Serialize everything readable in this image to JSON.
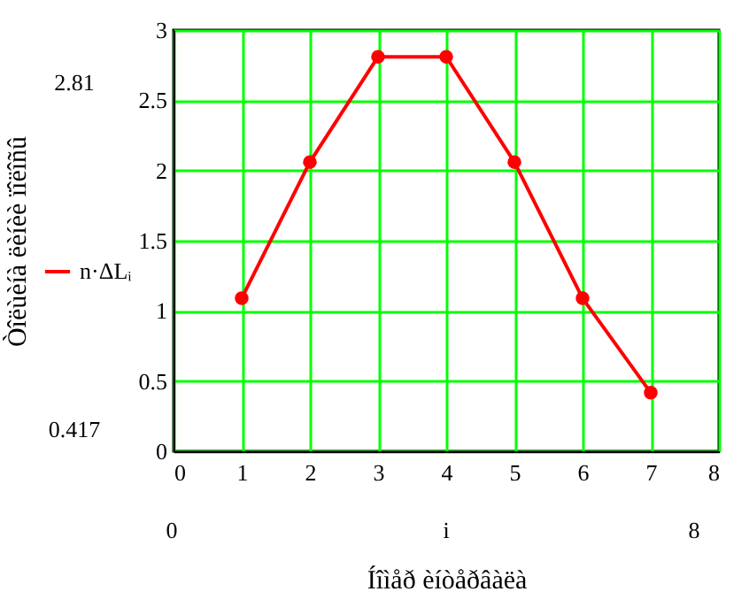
{
  "chart_data": {
    "type": "line",
    "xlabel": "Íîìåð èíòåðâàëà",
    "ylabel": "Òîëùèíà ëèíèè ïîëîñû",
    "x": [
      1,
      2,
      3,
      4,
      5,
      6,
      7
    ],
    "series": [
      {
        "name": "n·ΔLᵢ",
        "color": "#ff0000",
        "values": [
          1.09,
          2.06,
          2.81,
          2.81,
          2.06,
          1.09,
          0.417
        ]
      }
    ],
    "xlim": [
      0,
      8
    ],
    "xticks": [
      0,
      1,
      2,
      3,
      4,
      5,
      6,
      7,
      8
    ],
    "ylim": [
      0,
      3
    ],
    "yticks": [
      0,
      0.5,
      1,
      1.5,
      2,
      2.5,
      3
    ],
    "annotations": [
      "2.81",
      "0.417",
      "0",
      "i",
      "8"
    ],
    "grid": true,
    "legend": "left",
    "marker": "circle",
    "line_style": "solid"
  }
}
